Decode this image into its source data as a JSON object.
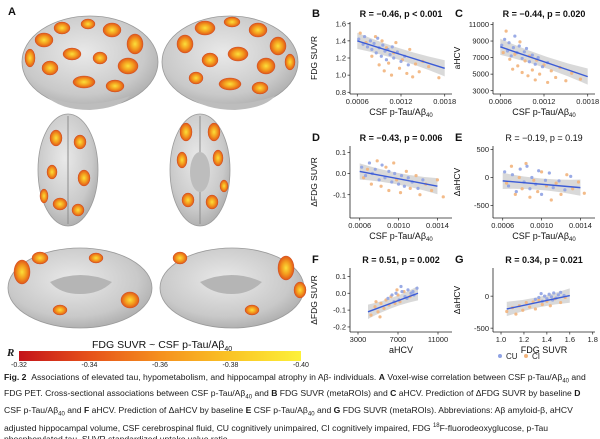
{
  "panel_a": {
    "letter": "A",
    "colorbar": {
      "title_main": "FDG SUVR ~ CSF p-Tau/Aβ",
      "title_sub": "40",
      "r_label": "R",
      "ticks": [
        "-0.32",
        "-0.34",
        "-0.36",
        "-0.38",
        "-0.40"
      ],
      "colors": [
        "#c4131a",
        "#e6521a",
        "#f5901e",
        "#fac425",
        "#fdf139"
      ]
    }
  },
  "colors": {
    "cu": "#8fa2e3",
    "ci": "#f2b47c",
    "fit": "#3b5bd6",
    "band": "#b9b9b9",
    "axis": "#222222"
  },
  "chart_data": [
    {
      "id": "B",
      "type": "scatter",
      "stat": "R = −0.46, p < 0.001",
      "stat_bold": true,
      "ylabel": "FDG SUVR",
      "xlabel_main": "CSF p-Tau/Aβ",
      "xlabel_sub": "40",
      "xlim": [
        0.0005,
        0.0019
      ],
      "ylim": [
        0.78,
        1.62
      ],
      "xticks": [
        "0.0006",
        "0.0012",
        "0.0018"
      ],
      "xtick_vals": [
        0.0006,
        0.0012,
        0.0018
      ],
      "yticks": [
        "0.8",
        "1.0",
        "1.2",
        "1.4",
        "1.6"
      ],
      "ytick_vals": [
        0.8,
        1.0,
        1.2,
        1.4,
        1.6
      ],
      "fit": [
        [
          0.0006,
          1.4
        ],
        [
          0.0018,
          1.08
        ]
      ],
      "cu": [
        [
          0.00062,
          1.42
        ],
        [
          0.00068,
          1.36
        ],
        [
          0.0007,
          1.45
        ],
        [
          0.00074,
          1.33
        ],
        [
          0.00078,
          1.4
        ],
        [
          0.0008,
          1.3
        ],
        [
          0.00083,
          1.37
        ],
        [
          0.00086,
          1.26
        ],
        [
          0.00088,
          1.43
        ],
        [
          0.0009,
          1.32
        ],
        [
          0.00093,
          1.22
        ],
        [
          0.00095,
          1.35
        ],
        [
          0.00098,
          1.28
        ],
        [
          0.001,
          1.18
        ],
        [
          0.00102,
          1.3
        ],
        [
          0.00105,
          1.24
        ],
        [
          0.00108,
          1.33
        ],
        [
          0.0011,
          1.2
        ],
        [
          0.00115,
          1.27
        ],
        [
          0.0012,
          1.16
        ],
        [
          0.00125,
          1.22
        ],
        [
          0.0013,
          1.12
        ]
      ],
      "ci": [
        [
          0.00064,
          1.49
        ],
        [
          0.00072,
          1.38
        ],
        [
          0.0008,
          1.22
        ],
        [
          0.00085,
          1.45
        ],
        [
          0.0009,
          1.12
        ],
        [
          0.00094,
          1.4
        ],
        [
          0.00097,
          1.05
        ],
        [
          0.001,
          1.32
        ],
        [
          0.00103,
          1.14
        ],
        [
          0.00107,
          1.0
        ],
        [
          0.0011,
          1.26
        ],
        [
          0.00113,
          1.38
        ],
        [
          0.00118,
          1.08
        ],
        [
          0.00122,
          1.18
        ],
        [
          0.00128,
          1.02
        ],
        [
          0.00132,
          1.3
        ],
        [
          0.00136,
          0.98
        ],
        [
          0.0014,
          1.13
        ],
        [
          0.00145,
          1.04
        ],
        [
          0.0015,
          1.16
        ],
        [
          0.00158,
          1.1
        ],
        [
          0.00172,
          0.97
        ]
      ]
    },
    {
      "id": "C",
      "type": "scatter",
      "stat": "R = −0.44, p = 0.020",
      "stat_bold": true,
      "ylabel": "aHCV",
      "xlabel_main": "CSF p-Tau/Aβ",
      "xlabel_sub": "40",
      "xlim": [
        0.0005,
        0.0019
      ],
      "ylim": [
        2600,
        11300
      ],
      "xticks": [
        "0.0006",
        "0.0012",
        "0.0018"
      ],
      "xtick_vals": [
        0.0006,
        0.0012,
        0.0018
      ],
      "yticks": [
        "3000",
        "5000",
        "7000",
        "9000",
        "11000"
      ],
      "ytick_vals": [
        3000,
        5000,
        7000,
        9000,
        11000
      ],
      "fit": [
        [
          0.0006,
          8300
        ],
        [
          0.0018,
          4700
        ]
      ],
      "cu": [
        [
          0.00062,
          8500
        ],
        [
          0.00066,
          9200
        ],
        [
          0.0007,
          7800
        ],
        [
          0.00072,
          8800
        ],
        [
          0.00075,
          7200
        ],
        [
          0.00078,
          8200
        ],
        [
          0.0008,
          9600
        ],
        [
          0.00083,
          7600
        ],
        [
          0.00086,
          8400
        ],
        [
          0.0009,
          6900
        ],
        [
          0.00093,
          7700
        ],
        [
          0.00096,
          8100
        ],
        [
          0.001,
          6500
        ],
        [
          0.00104,
          7300
        ],
        [
          0.00108,
          6200
        ],
        [
          0.00112,
          7000
        ],
        [
          0.00118,
          5900
        ],
        [
          0.00125,
          6400
        ]
      ],
      "ci": [
        [
          0.00064,
          7600
        ],
        [
          0.00068,
          10200
        ],
        [
          0.00073,
          6800
        ],
        [
          0.00077,
          5600
        ],
        [
          0.0008,
          7400
        ],
        [
          0.00084,
          6000
        ],
        [
          0.00087,
          8900
        ],
        [
          0.0009,
          5200
        ],
        [
          0.00094,
          6600
        ],
        [
          0.00098,
          4800
        ],
        [
          0.001,
          7200
        ],
        [
          0.00104,
          5500
        ],
        [
          0.00108,
          4300
        ],
        [
          0.0011,
          6700
        ],
        [
          0.00114,
          5000
        ],
        [
          0.0012,
          6100
        ],
        [
          0.00125,
          4000
        ],
        [
          0.0013,
          5400
        ],
        [
          0.00136,
          4600
        ],
        [
          0.00142,
          5800
        ],
        [
          0.0015,
          4200
        ],
        [
          0.00158,
          5100
        ],
        [
          0.0017,
          4400
        ]
      ]
    },
    {
      "id": "D",
      "type": "scatter",
      "stat": "R = −0.43, p = 0.006",
      "stat_bold": true,
      "ylabel": "ΔFDG SUVR",
      "xlabel_main": "CSF p-Tau/Aβ",
      "xlabel_sub": "40",
      "xlim": [
        0.0005,
        0.00155
      ],
      "ylim": [
        -0.21,
        0.13
      ],
      "xticks": [
        "0.0006",
        "0.0010",
        "0.0014"
      ],
      "xtick_vals": [
        0.0006,
        0.001,
        0.0014
      ],
      "yticks": [
        "-0.1",
        "0.0",
        "0.1"
      ],
      "ytick_vals": [
        -0.1,
        0.0,
        0.1
      ],
      "fit": [
        [
          0.0006,
          0.01
        ],
        [
          0.0014,
          -0.06
        ]
      ],
      "cu": [
        [
          0.00062,
          0.03
        ],
        [
          0.00066,
          -0.01
        ],
        [
          0.0007,
          0.05
        ],
        [
          0.00073,
          0.0
        ],
        [
          0.00076,
          0.02
        ],
        [
          0.0008,
          -0.03
        ],
        [
          0.00083,
          0.04
        ],
        [
          0.00086,
          -0.02
        ],
        [
          0.0009,
          0.01
        ],
        [
          0.00093,
          -0.04
        ],
        [
          0.00096,
          0.0
        ],
        [
          0.001,
          -0.05
        ],
        [
          0.00103,
          -0.01
        ],
        [
          0.00106,
          -0.06
        ],
        [
          0.0011,
          -0.02
        ],
        [
          0.00114,
          -0.04
        ],
        [
          0.0012,
          -0.07
        ],
        [
          0.00125,
          -0.03
        ]
      ],
      "ci": [
        [
          0.00064,
          -0.02
        ],
        [
          0.00068,
          0.02
        ],
        [
          0.00072,
          -0.05
        ],
        [
          0.00078,
          0.06
        ],
        [
          0.00082,
          -0.06
        ],
        [
          0.00087,
          0.03
        ],
        [
          0.0009,
          -0.08
        ],
        [
          0.00095,
          0.05
        ],
        [
          0.00098,
          -0.03
        ],
        [
          0.00102,
          -0.09
        ],
        [
          0.00108,
          0.01
        ],
        [
          0.00112,
          -0.07
        ],
        [
          0.00118,
          -0.01
        ],
        [
          0.00122,
          -0.1
        ],
        [
          0.00128,
          -0.05
        ],
        [
          0.00134,
          -0.08
        ],
        [
          0.0014,
          -0.03
        ],
        [
          0.00146,
          -0.11
        ]
      ]
    },
    {
      "id": "E",
      "type": "scatter",
      "stat": "R = −0.19, p = 0.19",
      "stat_bold": false,
      "ylabel": "ΔaHCV",
      "xlabel_main": "CSF p-Tau/Aβ",
      "xlabel_sub": "40",
      "xlim": [
        0.0005,
        0.00155
      ],
      "ylim": [
        -720,
        560
      ],
      "xticks": [
        "0.0006",
        "0.0010",
        "0.0014"
      ],
      "xtick_vals": [
        0.0006,
        0.001,
        0.0014
      ],
      "yticks": [
        "-500",
        "0",
        "500"
      ],
      "ytick_vals": [
        -500,
        0,
        500
      ],
      "fit": [
        [
          0.0006,
          -60
        ],
        [
          0.0014,
          -180
        ]
      ],
      "cu": [
        [
          0.00062,
          100
        ],
        [
          0.00066,
          -150
        ],
        [
          0.0007,
          50
        ],
        [
          0.00074,
          -250
        ],
        [
          0.00078,
          150
        ],
        [
          0.00082,
          -80
        ],
        [
          0.00085,
          200
        ],
        [
          0.00088,
          -200
        ],
        [
          0.0009,
          0
        ],
        [
          0.00094,
          -120
        ],
        [
          0.00097,
          120
        ],
        [
          0.001,
          -300
        ],
        [
          0.00104,
          -50
        ],
        [
          0.00108,
          80
        ],
        [
          0.00112,
          -180
        ],
        [
          0.00118,
          -60
        ],
        [
          0.00124,
          -220
        ],
        [
          0.0013,
          20
        ]
      ],
      "ci": [
        [
          0.00064,
          -100
        ],
        [
          0.00069,
          200
        ],
        [
          0.00073,
          -300
        ],
        [
          0.00077,
          0
        ],
        [
          0.0008,
          -200
        ],
        [
          0.00084,
          250
        ],
        [
          0.00088,
          -350
        ],
        [
          0.00092,
          -50
        ],
        [
          0.00096,
          -250
        ],
        [
          0.001,
          100
        ],
        [
          0.00105,
          -150
        ],
        [
          0.0011,
          -400
        ],
        [
          0.00115,
          -100
        ],
        [
          0.0012,
          -300
        ],
        [
          0.00126,
          50
        ],
        [
          0.00132,
          -200
        ],
        [
          0.00138,
          -80
        ],
        [
          0.00144,
          -280
        ]
      ]
    },
    {
      "id": "F",
      "type": "scatter",
      "stat": "R = 0.51, p = 0.002",
      "stat_bold": true,
      "ylabel": "ΔFDG SUVR",
      "xlabel_main": "aHCV",
      "xlabel_sub": "",
      "xlim": [
        2200,
        12400
      ],
      "ylim": [
        -0.23,
        0.15
      ],
      "xticks": [
        "3000",
        "7000",
        "11000"
      ],
      "xtick_vals": [
        3000,
        7000,
        11000
      ],
      "yticks": [
        "-0.2",
        "-0.1",
        "0.0",
        "0.1"
      ],
      "ytick_vals": [
        -0.2,
        -0.1,
        0.0,
        0.1
      ],
      "fit": [
        [
          4000,
          -0.11
        ],
        [
          9000,
          0.0
        ]
      ],
      "cu": [
        [
          6000,
          -0.03
        ],
        [
          6400,
          -0.01
        ],
        [
          6800,
          0.0
        ],
        [
          7100,
          -0.04
        ],
        [
          7400,
          0.01
        ],
        [
          7700,
          -0.02
        ],
        [
          8000,
          0.02
        ],
        [
          8300,
          0.0
        ],
        [
          8600,
          -0.01
        ],
        [
          8900,
          0.03
        ],
        [
          7300,
          0.04
        ],
        [
          6600,
          -0.05
        ],
        [
          7900,
          -0.03
        ],
        [
          8500,
          0.01
        ]
      ],
      "ci": [
        [
          4300,
          -0.13
        ],
        [
          4700,
          -0.08
        ],
        [
          5000,
          -0.11
        ],
        [
          5300,
          -0.06
        ],
        [
          5600,
          -0.09
        ],
        [
          5800,
          -0.04
        ],
        [
          6100,
          -0.07
        ],
        [
          6300,
          -0.02
        ],
        [
          6700,
          -0.06
        ],
        [
          7000,
          -0.01
        ],
        [
          7200,
          -0.05
        ],
        [
          7600,
          0.01
        ],
        [
          5200,
          -0.14
        ],
        [
          6900,
          0.02
        ],
        [
          8200,
          -0.02
        ],
        [
          4800,
          -0.05
        ]
      ]
    },
    {
      "id": "G",
      "type": "scatter",
      "stat": "R = 0.34, p = 0.021",
      "stat_bold": true,
      "ylabel": "ΔaHCV",
      "xlabel_main": "FDG SUVR",
      "xlabel_sub": "",
      "xlim": [
        0.93,
        1.82
      ],
      "ylim": [
        -560,
        440
      ],
      "xticks": [
        "1.0",
        "1.2",
        "1.4",
        "1.6",
        "1.8"
      ],
      "xtick_vals": [
        1.0,
        1.2,
        1.4,
        1.6,
        1.8
      ],
      "yticks": [
        "-500",
        "0"
      ],
      "ytick_vals": [
        -500,
        0
      ],
      "fit": [
        [
          1.05,
          -200
        ],
        [
          1.6,
          10
        ]
      ],
      "cu": [
        [
          1.3,
          -50
        ],
        [
          1.33,
          -20
        ],
        [
          1.36,
          -80
        ],
        [
          1.38,
          0
        ],
        [
          1.4,
          -40
        ],
        [
          1.42,
          30
        ],
        [
          1.44,
          -10
        ],
        [
          1.46,
          50
        ],
        [
          1.48,
          -30
        ],
        [
          1.5,
          20
        ],
        [
          1.52,
          60
        ],
        [
          1.35,
          40
        ],
        [
          1.45,
          -60
        ],
        [
          1.55,
          10
        ]
      ],
      "ci": [
        [
          1.05,
          -240
        ],
        [
          1.1,
          -180
        ],
        [
          1.13,
          -280
        ],
        [
          1.16,
          -150
        ],
        [
          1.19,
          -220
        ],
        [
          1.22,
          -100
        ],
        [
          1.25,
          -170
        ],
        [
          1.28,
          -90
        ],
        [
          1.3,
          -200
        ],
        [
          1.33,
          -60
        ],
        [
          1.36,
          -130
        ],
        [
          1.4,
          -80
        ],
        [
          1.43,
          -150
        ],
        [
          1.47,
          -40
        ],
        [
          1.52,
          -100
        ],
        [
          1.56,
          -20
        ]
      ]
    }
  ],
  "legend": {
    "cu": "CU",
    "ci": "CI"
  },
  "caption": {
    "fig_label": "Fig. 2",
    "p1": "Associations of elevated tau, hypometabolism, and hippocampal atrophy in Aβ- individuals.",
    "p2a": "A",
    "p2b": "Voxel-wise correlation between CSF p-Tau/Aβ",
    "p2c": "40",
    "p2d": "and FDG PET. Cross-sectional associations between CSF p-Tau/Aβ",
    "p2e": "40",
    "p2f": "and",
    "p3a": "B",
    "p3b": "FDG SUVR (metaROIs) and",
    "p3c": "C",
    "p3d": "aHCV. Prediction of ΔFDG SUVR by baseline",
    "p3e": "D",
    "p3f": "CSF p-Tau/Aβ",
    "p3g": "40",
    "p3h": "and",
    "p3i": "F",
    "p3j": "aHCV. Prediction of ΔaHCV by baseline",
    "p3k": "E",
    "p3l": "CSF p-Tau/Aβ",
    "p3m": "40",
    "p3n": "and",
    "p3o": "G",
    "p3p": "FDG SUVR (metaROIs). Abbreviations: Aβ amyloid-β, aHCV adjusted hippocampal volume, CSF cerebrospinal fluid, CU cognitively unimpaired, CI cognitively impaired, FDG",
    "p4a": "18",
    "p4b": "F-fluorodeoxyglucose, p-Tau phosphorylated tau, SUVR standardized uptake value ratio"
  }
}
